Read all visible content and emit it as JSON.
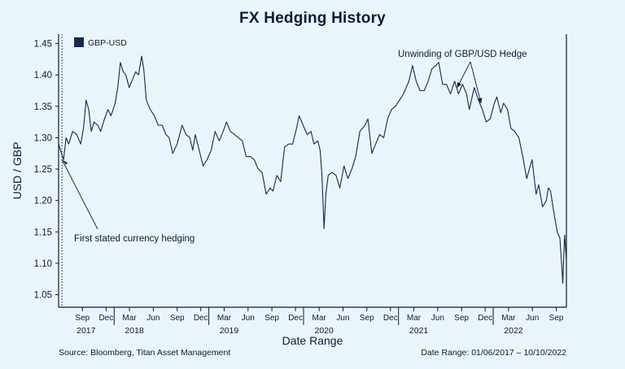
{
  "chart_data": {
    "type": "line",
    "title": "FX Hedging History",
    "xlabel": "Date Range",
    "ylabel": "USD / GBP",
    "ylim": [
      1.03,
      1.465
    ],
    "yticks": [
      "1.45",
      "1.40",
      "1.35",
      "1.30",
      "1.25",
      "1.20",
      "1.15",
      "1.10",
      "1.05"
    ],
    "xlim": [
      "2017-06-01",
      "2022-10-10"
    ],
    "month_ticks": [
      {
        "date": "2017-09-01",
        "label": "Sep"
      },
      {
        "date": "2017-12-01",
        "label": "Dec"
      },
      {
        "date": "2018-03-01",
        "label": "Mar"
      },
      {
        "date": "2018-06-01",
        "label": "Jun"
      },
      {
        "date": "2018-09-01",
        "label": "Sep"
      },
      {
        "date": "2018-12-01",
        "label": "Dec"
      },
      {
        "date": "2019-03-01",
        "label": "Mar"
      },
      {
        "date": "2019-06-01",
        "label": "Jun"
      },
      {
        "date": "2019-09-01",
        "label": "Sep"
      },
      {
        "date": "2019-12-01",
        "label": "Dec"
      },
      {
        "date": "2020-03-01",
        "label": "Mar"
      },
      {
        "date": "2020-06-01",
        "label": "Jun"
      },
      {
        "date": "2020-09-01",
        "label": "Sep"
      },
      {
        "date": "2020-12-01",
        "label": "Dec"
      },
      {
        "date": "2021-03-01",
        "label": "Mar"
      },
      {
        "date": "2021-06-01",
        "label": "Jun"
      },
      {
        "date": "2021-09-01",
        "label": "Sep"
      },
      {
        "date": "2021-12-01",
        "label": "Dec"
      },
      {
        "date": "2022-03-01",
        "label": "Mar"
      },
      {
        "date": "2022-06-01",
        "label": "Jun"
      },
      {
        "date": "2022-09-01",
        "label": "Sep"
      }
    ],
    "year_labels": [
      {
        "date": "2017-09-15",
        "label": "2017"
      },
      {
        "date": "2018-03-20",
        "label": "2018"
      },
      {
        "date": "2019-03-20",
        "label": "2019"
      },
      {
        "date": "2020-03-20",
        "label": "2020"
      },
      {
        "date": "2021-03-20",
        "label": "2021"
      },
      {
        "date": "2022-03-20",
        "label": "2022"
      }
    ],
    "legend": {
      "position": "top-left",
      "color": "#14294f"
    },
    "series": [
      {
        "name": "GBP-USD",
        "color": "#14294f",
        "points": [
          [
            "2017-06-01",
            1.29
          ],
          [
            "2017-06-12",
            1.275
          ],
          [
            "2017-06-20",
            1.265
          ],
          [
            "2017-06-30",
            1.3
          ],
          [
            "2017-07-10",
            1.29
          ],
          [
            "2017-07-25",
            1.31
          ],
          [
            "2017-08-10",
            1.305
          ],
          [
            "2017-08-25",
            1.29
          ],
          [
            "2017-09-05",
            1.315
          ],
          [
            "2017-09-15",
            1.36
          ],
          [
            "2017-09-25",
            1.345
          ],
          [
            "2017-10-05",
            1.31
          ],
          [
            "2017-10-15",
            1.325
          ],
          [
            "2017-10-30",
            1.32
          ],
          [
            "2017-11-10",
            1.31
          ],
          [
            "2017-11-25",
            1.33
          ],
          [
            "2017-12-08",
            1.345
          ],
          [
            "2017-12-20",
            1.335
          ],
          [
            "2018-01-05",
            1.355
          ],
          [
            "2018-01-15",
            1.38
          ],
          [
            "2018-01-25",
            1.42
          ],
          [
            "2018-02-05",
            1.405
          ],
          [
            "2018-02-15",
            1.4
          ],
          [
            "2018-02-28",
            1.38
          ],
          [
            "2018-03-10",
            1.39
          ],
          [
            "2018-03-25",
            1.405
          ],
          [
            "2018-04-05",
            1.4
          ],
          [
            "2018-04-17",
            1.43
          ],
          [
            "2018-04-25",
            1.41
          ],
          [
            "2018-05-05",
            1.36
          ],
          [
            "2018-05-20",
            1.345
          ],
          [
            "2018-06-05",
            1.335
          ],
          [
            "2018-06-20",
            1.32
          ],
          [
            "2018-07-05",
            1.32
          ],
          [
            "2018-07-20",
            1.305
          ],
          [
            "2018-08-01",
            1.3
          ],
          [
            "2018-08-15",
            1.275
          ],
          [
            "2018-09-01",
            1.29
          ],
          [
            "2018-09-20",
            1.32
          ],
          [
            "2018-10-05",
            1.305
          ],
          [
            "2018-10-20",
            1.3
          ],
          [
            "2018-10-31",
            1.28
          ],
          [
            "2018-11-10",
            1.305
          ],
          [
            "2018-11-25",
            1.28
          ],
          [
            "2018-12-10",
            1.255
          ],
          [
            "2018-12-25",
            1.265
          ],
          [
            "2019-01-10",
            1.28
          ],
          [
            "2019-01-25",
            1.31
          ],
          [
            "2019-02-10",
            1.295
          ],
          [
            "2019-02-25",
            1.31
          ],
          [
            "2019-03-10",
            1.325
          ],
          [
            "2019-03-25",
            1.31
          ],
          [
            "2019-04-10",
            1.305
          ],
          [
            "2019-04-25",
            1.3
          ],
          [
            "2019-05-10",
            1.295
          ],
          [
            "2019-05-25",
            1.27
          ],
          [
            "2019-06-10",
            1.27
          ],
          [
            "2019-06-25",
            1.265
          ],
          [
            "2019-07-10",
            1.25
          ],
          [
            "2019-07-25",
            1.245
          ],
          [
            "2019-08-10",
            1.21
          ],
          [
            "2019-08-25",
            1.22
          ],
          [
            "2019-09-05",
            1.215
          ],
          [
            "2019-09-20",
            1.24
          ],
          [
            "2019-10-05",
            1.23
          ],
          [
            "2019-10-20",
            1.285
          ],
          [
            "2019-11-05",
            1.29
          ],
          [
            "2019-11-20",
            1.29
          ],
          [
            "2019-12-05",
            1.315
          ],
          [
            "2019-12-15",
            1.335
          ],
          [
            "2019-12-30",
            1.32
          ],
          [
            "2020-01-15",
            1.305
          ],
          [
            "2020-01-30",
            1.31
          ],
          [
            "2020-02-10",
            1.29
          ],
          [
            "2020-02-25",
            1.295
          ],
          [
            "2020-03-05",
            1.28
          ],
          [
            "2020-03-12",
            1.24
          ],
          [
            "2020-03-20",
            1.155
          ],
          [
            "2020-03-27",
            1.21
          ],
          [
            "2020-04-05",
            1.24
          ],
          [
            "2020-04-20",
            1.245
          ],
          [
            "2020-05-05",
            1.24
          ],
          [
            "2020-05-20",
            1.22
          ],
          [
            "2020-06-05",
            1.255
          ],
          [
            "2020-06-20",
            1.235
          ],
          [
            "2020-07-05",
            1.25
          ],
          [
            "2020-07-20",
            1.27
          ],
          [
            "2020-08-05",
            1.31
          ],
          [
            "2020-08-25",
            1.32
          ],
          [
            "2020-09-05",
            1.33
          ],
          [
            "2020-09-20",
            1.275
          ],
          [
            "2020-10-05",
            1.29
          ],
          [
            "2020-10-20",
            1.305
          ],
          [
            "2020-11-05",
            1.3
          ],
          [
            "2020-11-20",
            1.33
          ],
          [
            "2020-12-05",
            1.345
          ],
          [
            "2020-12-20",
            1.35
          ],
          [
            "2021-01-05",
            1.36
          ],
          [
            "2021-01-20",
            1.37
          ],
          [
            "2021-02-10",
            1.39
          ],
          [
            "2021-02-24",
            1.415
          ],
          [
            "2021-03-10",
            1.39
          ],
          [
            "2021-03-25",
            1.375
          ],
          [
            "2021-04-10",
            1.375
          ],
          [
            "2021-04-25",
            1.39
          ],
          [
            "2021-05-10",
            1.41
          ],
          [
            "2021-05-25",
            1.415
          ],
          [
            "2021-06-05",
            1.42
          ],
          [
            "2021-06-20",
            1.385
          ],
          [
            "2021-07-05",
            1.385
          ],
          [
            "2021-07-20",
            1.37
          ],
          [
            "2021-08-05",
            1.39
          ],
          [
            "2021-08-20",
            1.37
          ],
          [
            "2021-09-05",
            1.385
          ],
          [
            "2021-09-20",
            1.37
          ],
          [
            "2021-10-01",
            1.345
          ],
          [
            "2021-10-20",
            1.38
          ],
          [
            "2021-11-05",
            1.36
          ],
          [
            "2021-11-20",
            1.345
          ],
          [
            "2021-12-05",
            1.325
          ],
          [
            "2021-12-20",
            1.33
          ],
          [
            "2022-01-05",
            1.355
          ],
          [
            "2022-01-15",
            1.365
          ],
          [
            "2022-01-30",
            1.34
          ],
          [
            "2022-02-10",
            1.355
          ],
          [
            "2022-02-25",
            1.345
          ],
          [
            "2022-03-10",
            1.315
          ],
          [
            "2022-03-25",
            1.31
          ],
          [
            "2022-04-10",
            1.3
          ],
          [
            "2022-04-25",
            1.27
          ],
          [
            "2022-05-10",
            1.235
          ],
          [
            "2022-05-20",
            1.25
          ],
          [
            "2022-05-31",
            1.265
          ],
          [
            "2022-06-15",
            1.21
          ],
          [
            "2022-06-25",
            1.225
          ],
          [
            "2022-07-10",
            1.19
          ],
          [
            "2022-07-25",
            1.2
          ],
          [
            "2022-08-01",
            1.22
          ],
          [
            "2022-08-10",
            1.215
          ],
          [
            "2022-08-25",
            1.175
          ],
          [
            "2022-09-05",
            1.15
          ],
          [
            "2022-09-15",
            1.14
          ],
          [
            "2022-09-23",
            1.09
          ],
          [
            "2022-09-26",
            1.068
          ],
          [
            "2022-10-03",
            1.145
          ],
          [
            "2022-10-10",
            1.105
          ]
        ]
      }
    ],
    "hedge_start": "2017-06-14",
    "annotations": [
      {
        "text": "First stated currency hedging",
        "target": [
          "2017-06-14",
          1.265
        ]
      },
      {
        "text": "Unwinding of GBP/USD Hedge",
        "targets": [
          [
            "2021-08-15",
            1.38
          ],
          [
            "2021-11-15",
            1.355
          ]
        ]
      }
    ]
  },
  "footer": {
    "source": "Source: Bloomberg, Titan Asset Management",
    "date_range": "Date Range: 01/06/2017 – 10/10/2022"
  }
}
